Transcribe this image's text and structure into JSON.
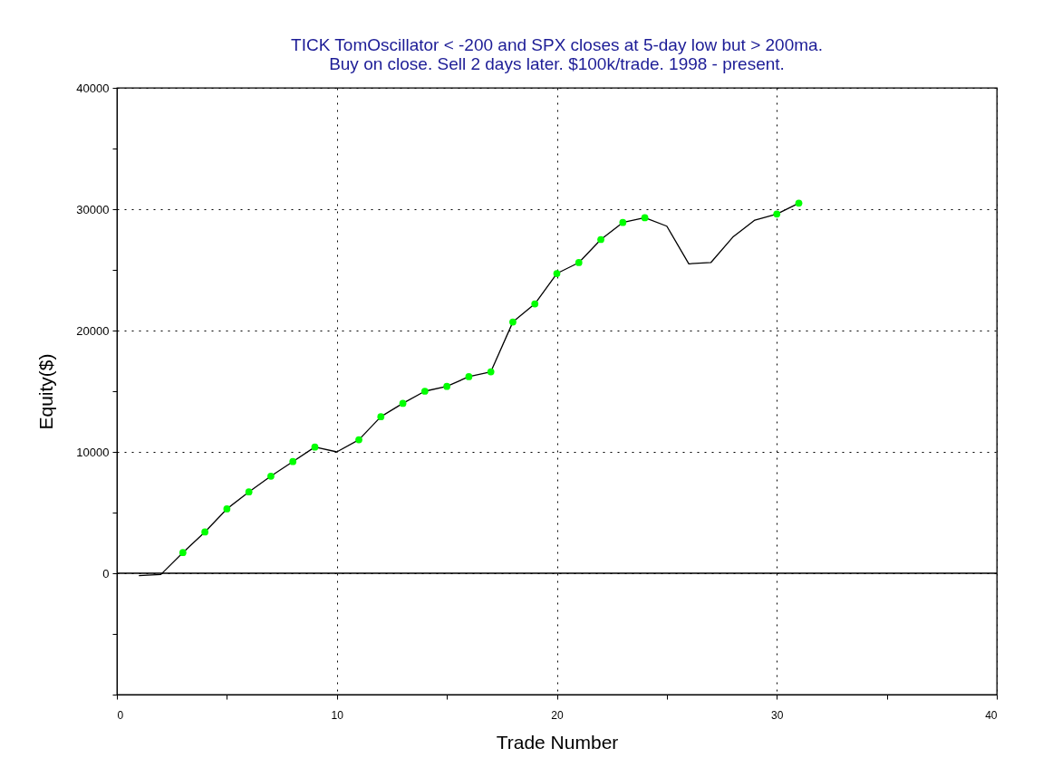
{
  "chart_data": {
    "type": "line",
    "title": "TICK TomOscillator < -200 and SPX closes at 5-day low but > 200ma.",
    "subtitle": "Buy on close. Sell 2 days later. $100k/trade. 1998 - present.",
    "xlabel": "Trade Number",
    "ylabel": "Equity($)",
    "x": [
      1,
      2,
      3,
      4,
      5,
      6,
      7,
      8,
      9,
      10,
      11,
      12,
      13,
      14,
      15,
      16,
      17,
      18,
      19,
      20,
      21,
      22,
      23,
      24,
      25,
      26,
      27,
      28,
      29,
      30,
      31
    ],
    "series": [
      {
        "type": "line",
        "color": "#000000",
        "values": [
          -200,
          -100,
          1700,
          3400,
          5300,
          6700,
          8000,
          9200,
          10400,
          10000,
          11000,
          12900,
          14000,
          15000,
          15400,
          16200,
          16600,
          20700,
          22200,
          24700,
          25600,
          27500,
          28900,
          29300,
          28600,
          25500,
          25600,
          27700,
          29100,
          29600,
          30500
        ]
      },
      {
        "type": "scatter",
        "color": "#00ff00",
        "marker": "circle",
        "x": [
          3,
          4,
          5,
          6,
          7,
          8,
          9,
          11,
          12,
          13,
          14,
          15,
          16,
          17,
          18,
          19,
          20,
          21,
          22,
          23,
          24,
          30,
          31
        ],
        "values": [
          1700,
          3400,
          5300,
          6700,
          8000,
          9200,
          10400,
          11000,
          12900,
          14000,
          15000,
          15400,
          16200,
          16600,
          20700,
          22200,
          24700,
          25600,
          27500,
          28900,
          29300,
          29600,
          30500
        ]
      }
    ],
    "xlim": [
      0,
      40
    ],
    "xticks": [
      0,
      {
        "value": 5,
        "label": null
      },
      10,
      {
        "value": 15,
        "label": null
      },
      20,
      {
        "value": 25,
        "label": null
      },
      30,
      {
        "value": 35,
        "label": null
      },
      40
    ],
    "ylim": [
      -10000,
      40000
    ],
    "yticks": [
      {
        "value": -10000,
        "label": null
      },
      {
        "value": -5000,
        "label": null
      },
      0,
      {
        "value": 5000,
        "label": null
      },
      10000,
      {
        "value": 15000,
        "label": null
      },
      20000,
      {
        "value": 25000,
        "label": null
      },
      30000,
      {
        "value": 35000,
        "label": null
      },
      40000
    ],
    "grid": true,
    "ref_lines": [
      {
        "axis": "y",
        "value": 0,
        "color": "#000000",
        "line_style": "solid"
      }
    ]
  }
}
